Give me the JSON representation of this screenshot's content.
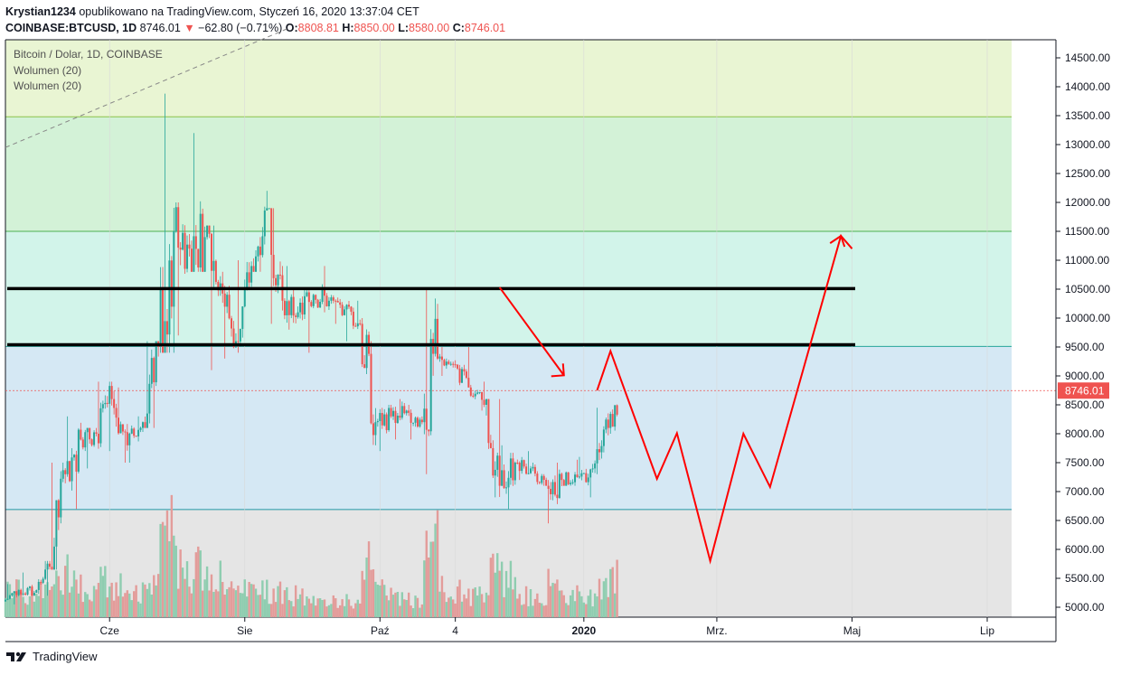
{
  "header": {
    "author": "Krystian1234",
    "published_text": "opublikowano na TradingView.com, Styczeń 16, 2020 13:37:04 CET",
    "symbol": "COINBASE:BTCUSD, 1D",
    "last": "8746.01",
    "change_arrow": "▼",
    "change": "−62.80 (−0.71%)",
    "o_label": "O:",
    "o_value": "8808.81",
    "h_label": "H:",
    "h_value": "8850.00",
    "l_label": "L:",
    "l_value": "8580.00",
    "c_label": "C:",
    "c_value": "8746.01"
  },
  "legend": {
    "title": "Bitcoin / Dolar, 1D, COINBASE",
    "indicator1": "Wolumen (20)",
    "indicator2": "Wolumen (20)"
  },
  "footer": {
    "brand": "TradingView"
  },
  "colors": {
    "up": "#26a69a",
    "down": "#ef5350",
    "annotation": "#ff0000",
    "zone_top": "#e9f5d3",
    "zone_green": "#d3f2d7",
    "zone_teal": "#d2f4ea",
    "zone_blue": "#d5e8f4",
    "zone_gray": "#e5e5e5"
  },
  "chart_data": {
    "type": "candlestick",
    "title": "Bitcoin / Dolar, 1D, COINBASE",
    "price_ticks": [
      5000,
      5500,
      6000,
      6500,
      7000,
      7500,
      8000,
      8500,
      9000,
      9500,
      10000,
      10500,
      11000,
      11500,
      12000,
      12500,
      13000,
      13500,
      14000,
      14500
    ],
    "price_tick_labels": [
      "5000.00",
      "5500.00",
      "6000.00",
      "6500.00",
      "7000.00",
      "7500.00",
      "8000.00",
      "8500.00",
      "9000.00",
      "9500.00",
      "10000.00",
      "10500.00",
      "11000.00",
      "11500.00",
      "12000.00",
      "12500.00",
      "13000.00",
      "13500.00",
      "14000.00",
      "14500.00"
    ],
    "last_price_label": "8746.01",
    "last_price": 8746.01,
    "time_labels": [
      {
        "label": "Cze",
        "date": "2019-06-01"
      },
      {
        "label": "Sie",
        "date": "2019-08-01"
      },
      {
        "label": "Paź",
        "date": "2019-10-01"
      },
      {
        "label": "4",
        "date": "2019-11-04"
      },
      {
        "label": "2020",
        "date": "2020-01-01"
      },
      {
        "label": "Mrz.",
        "date": "2020-03-01"
      },
      {
        "label": "Maj",
        "date": "2020-05-01"
      },
      {
        "label": "Lip",
        "date": "2020-07-01"
      }
    ],
    "x_range": [
      "2019-04-15",
      "2020-08-01"
    ],
    "zones": [
      {
        "from": 13480,
        "to": 14950,
        "color": "#e9f5d3"
      },
      {
        "from": 11500,
        "to": 13480,
        "color": "#d3f2d7"
      },
      {
        "from": 9510,
        "to": 11500,
        "color": "#d2f4ea"
      },
      {
        "from": 6690,
        "to": 9510,
        "color": "#d5e8f4"
      },
      {
        "from": 4800,
        "to": 6690,
        "color": "#e5e5e5"
      }
    ],
    "resistance_lines": [
      10510,
      9540
    ],
    "dashed_trendline": [
      {
        "date": "2019-04-15",
        "price": 12950
      },
      {
        "date": "2019-08-20",
        "price": 15000
      }
    ],
    "projection_path": [
      {
        "date": "2020-01-07",
        "price": 8750
      },
      {
        "date": "2020-01-13",
        "price": 9430
      },
      {
        "date": "2020-02-03",
        "price": 7220
      },
      {
        "date": "2020-02-12",
        "price": 8010
      },
      {
        "date": "2020-02-27",
        "price": 5800
      },
      {
        "date": "2020-03-13",
        "price": 8000
      },
      {
        "date": "2020-03-25",
        "price": 7080
      },
      {
        "date": "2020-04-26",
        "price": 11420
      },
      {
        "date": "2020-05-01",
        "price": 11200
      }
    ],
    "down_arrow": [
      {
        "date": "2019-11-24",
        "price": 10530
      },
      {
        "date": "2019-12-23",
        "price": 9010
      }
    ],
    "candles_weekly_approx": [
      {
        "date": "2019-04-15",
        "o": 5100,
        "h": 5400,
        "l": 5050,
        "c": 5300,
        "v": 0.3
      },
      {
        "date": "2019-04-22",
        "o": 5300,
        "h": 5600,
        "l": 5200,
        "c": 5250,
        "v": 0.25
      },
      {
        "date": "2019-04-29",
        "o": 5250,
        "h": 5800,
        "l": 5200,
        "c": 5700,
        "v": 0.3
      },
      {
        "date": "2019-05-06",
        "o": 5700,
        "h": 7500,
        "l": 5650,
        "c": 7300,
        "v": 0.5
      },
      {
        "date": "2019-05-13",
        "o": 7300,
        "h": 8300,
        "l": 6700,
        "c": 7900,
        "v": 0.55
      },
      {
        "date": "2019-05-20",
        "o": 7900,
        "h": 8100,
        "l": 7400,
        "c": 8000,
        "v": 0.35
      },
      {
        "date": "2019-05-27",
        "o": 8000,
        "h": 8900,
        "l": 7700,
        "c": 8600,
        "v": 0.4
      },
      {
        "date": "2019-06-03",
        "o": 8600,
        "h": 8800,
        "l": 7500,
        "c": 7800,
        "v": 0.35
      },
      {
        "date": "2019-06-10",
        "o": 7800,
        "h": 8300,
        "l": 7500,
        "c": 8200,
        "v": 0.3
      },
      {
        "date": "2019-06-17",
        "o": 8200,
        "h": 9600,
        "l": 8100,
        "c": 9500,
        "v": 0.45
      },
      {
        "date": "2019-06-24",
        "o": 9500,
        "h": 13880,
        "l": 9400,
        "c": 11500,
        "v": 1.0
      },
      {
        "date": "2019-07-01",
        "o": 11500,
        "h": 12000,
        "l": 9700,
        "c": 11200,
        "v": 0.6
      },
      {
        "date": "2019-07-08",
        "o": 11200,
        "h": 13200,
        "l": 10800,
        "c": 11400,
        "v": 0.55
      },
      {
        "date": "2019-07-15",
        "o": 11400,
        "h": 11600,
        "l": 9100,
        "c": 10600,
        "v": 0.5
      },
      {
        "date": "2019-07-22",
        "o": 10600,
        "h": 10800,
        "l": 9300,
        "c": 9600,
        "v": 0.35
      },
      {
        "date": "2019-07-29",
        "o": 9600,
        "h": 11000,
        "l": 9400,
        "c": 10900,
        "v": 0.3
      },
      {
        "date": "2019-08-05",
        "o": 10900,
        "h": 12200,
        "l": 10800,
        "c": 11900,
        "v": 0.35
      },
      {
        "date": "2019-08-12",
        "o": 11900,
        "h": 11900,
        "l": 9900,
        "c": 10300,
        "v": 0.3
      },
      {
        "date": "2019-08-19",
        "o": 10300,
        "h": 10900,
        "l": 9800,
        "c": 10100,
        "v": 0.25
      },
      {
        "date": "2019-08-26",
        "o": 10100,
        "h": 10500,
        "l": 9400,
        "c": 10400,
        "v": 0.25
      },
      {
        "date": "2019-09-02",
        "o": 10400,
        "h": 10900,
        "l": 10100,
        "c": 10300,
        "v": 0.2
      },
      {
        "date": "2019-09-09",
        "o": 10300,
        "h": 10400,
        "l": 9900,
        "c": 10150,
        "v": 0.18
      },
      {
        "date": "2019-09-16",
        "o": 10150,
        "h": 10300,
        "l": 9600,
        "c": 9900,
        "v": 0.2
      },
      {
        "date": "2019-09-23",
        "o": 9900,
        "h": 10000,
        "l": 7800,
        "c": 8200,
        "v": 0.6
      },
      {
        "date": "2019-09-30",
        "o": 8200,
        "h": 8500,
        "l": 7700,
        "c": 8300,
        "v": 0.3
      },
      {
        "date": "2019-10-07",
        "o": 8300,
        "h": 8600,
        "l": 7900,
        "c": 8400,
        "v": 0.22
      },
      {
        "date": "2019-10-14",
        "o": 8400,
        "h": 8500,
        "l": 7900,
        "c": 8200,
        "v": 0.2
      },
      {
        "date": "2019-10-21",
        "o": 8200,
        "h": 10500,
        "l": 7300,
        "c": 9300,
        "v": 0.9
      },
      {
        "date": "2019-10-28",
        "o": 9300,
        "h": 9500,
        "l": 9000,
        "c": 9200,
        "v": 0.35
      },
      {
        "date": "2019-11-04",
        "o": 9200,
        "h": 9500,
        "l": 8800,
        "c": 8800,
        "v": 0.3
      },
      {
        "date": "2019-11-11",
        "o": 8800,
        "h": 8900,
        "l": 8400,
        "c": 8500,
        "v": 0.25
      },
      {
        "date": "2019-11-18",
        "o": 8500,
        "h": 8600,
        "l": 6900,
        "c": 7100,
        "v": 0.5
      },
      {
        "date": "2019-11-25",
        "o": 7100,
        "h": 7800,
        "l": 6700,
        "c": 7500,
        "v": 0.45
      },
      {
        "date": "2019-12-02",
        "o": 7500,
        "h": 7700,
        "l": 7200,
        "c": 7400,
        "v": 0.25
      },
      {
        "date": "2019-12-09",
        "o": 7400,
        "h": 7500,
        "l": 7100,
        "c": 7100,
        "v": 0.22
      },
      {
        "date": "2019-12-16",
        "o": 7100,
        "h": 7500,
        "l": 6450,
        "c": 7200,
        "v": 0.4
      },
      {
        "date": "2019-12-23",
        "o": 7200,
        "h": 7550,
        "l": 7100,
        "c": 7250,
        "v": 0.25
      },
      {
        "date": "2019-12-30",
        "o": 7250,
        "h": 7600,
        "l": 6900,
        "c": 7400,
        "v": 0.25
      },
      {
        "date": "2020-01-06",
        "o": 7400,
        "h": 8450,
        "l": 7300,
        "c": 8100,
        "v": 0.4
      },
      {
        "date": "2020-01-13",
        "o": 8100,
        "h": 8900,
        "l": 8000,
        "c": 8746,
        "v": 0.45
      }
    ]
  }
}
